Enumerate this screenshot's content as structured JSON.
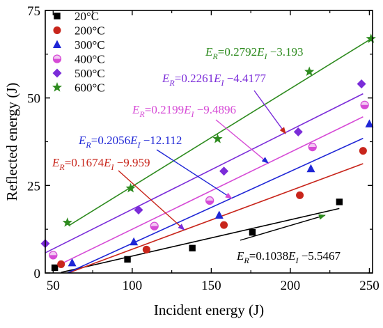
{
  "chart_data": {
    "type": "scatter",
    "title": "",
    "xlabel": "Incident energy (J)",
    "ylabel": "Reflected energy (J)",
    "xlim": [
      45,
      252
    ],
    "ylim": [
      0,
      75
    ],
    "xticks": [
      50,
      100,
      150,
      200,
      250
    ],
    "yticks": [
      0,
      25,
      50,
      75
    ],
    "x_minor_step": 25,
    "y_minor_step": 12.5,
    "grid": false,
    "legend_position": "top-left",
    "series": [
      {
        "name": "20°C",
        "color": "#000000",
        "marker": "square",
        "points": [
          [
            51,
            1.5
          ],
          [
            97,
            3.9
          ],
          [
            138,
            7.1
          ],
          [
            176,
            11.6
          ],
          [
            231,
            20.3
          ]
        ],
        "fit": {
          "equation": "E_R=0.1038E_I −5.5467",
          "slope": 0.1038,
          "intercept": -5.5467,
          "x_range": [
            55,
            231
          ]
        }
      },
      {
        "name": "200°C",
        "color": "#c8251b",
        "marker": "circle",
        "points": [
          [
            55,
            2.5
          ],
          [
            109,
            6.7
          ],
          [
            158,
            13.7
          ],
          [
            206,
            22.2
          ],
          [
            246,
            34.9
          ]
        ],
        "fit": {
          "equation": "E_R=0.1674E_I −9.959",
          "slope": 0.1674,
          "intercept": -9.959,
          "x_range": [
            60,
            246
          ]
        }
      },
      {
        "name": "300°C",
        "color": "#1f26d6",
        "marker": "triangle",
        "points": [
          [
            62,
            2.9
          ],
          [
            101,
            8.9
          ],
          [
            155,
            16.5
          ],
          [
            213,
            29.8
          ],
          [
            250,
            42.6
          ]
        ],
        "fit": {
          "equation": "E_R=0.2056E_I −12.112",
          "slope": 0.2056,
          "intercept": -12.112,
          "x_range": [
            59,
            246
          ]
        }
      },
      {
        "name": "400°C",
        "color": "#d64bd6",
        "marker": "half-circle",
        "points": [
          [
            50,
            5.1
          ],
          [
            114,
            13.4
          ],
          [
            149,
            20.7
          ],
          [
            214,
            36.0
          ],
          [
            247,
            48.0
          ]
        ],
        "fit": {
          "equation": "E_R=0.2199E_I −9.4896",
          "slope": 0.2199,
          "intercept": -9.4896,
          "x_range": [
            50,
            246
          ]
        }
      },
      {
        "name": "500°C",
        "color": "#7b2cd9",
        "marker": "diamond",
        "points": [
          [
            45,
            8.4
          ],
          [
            104,
            18.0
          ],
          [
            158,
            29.1
          ],
          [
            205,
            40.3
          ],
          [
            245,
            54.0
          ]
        ],
        "fit": {
          "equation": "E_R=0.2261E_I −4.4177",
          "slope": 0.2261,
          "intercept": -4.4177,
          "x_range": [
            45,
            246
          ]
        }
      },
      {
        "name": "600°C",
        "color": "#2e8b1f",
        "marker": "star",
        "points": [
          [
            59,
            14.4
          ],
          [
            99,
            24.2
          ],
          [
            154,
            38.3
          ],
          [
            212,
            57.5
          ],
          [
            251,
            66.9
          ]
        ],
        "fit": {
          "equation": "E_R=0.2792E_I −3.193",
          "slope": 0.2792,
          "intercept": -3.193,
          "x_range": [
            60,
            251
          ]
        }
      }
    ],
    "annotations": [
      {
        "series": "600°C",
        "parts": [
          "E",
          "R",
          "=0.2792",
          "E",
          "I",
          " −3.193"
        ],
        "target": [
          198,
          53.5
        ],
        "has_arrow": false
      },
      {
        "series": "500°C",
        "parts": [
          "E",
          "R",
          "=0.2261",
          "E",
          "I",
          " −4.4177"
        ],
        "target": [
          197,
          39.8
        ],
        "has_arrow": true
      },
      {
        "series": "400°C",
        "parts": [
          "E",
          "R",
          "=0.2199",
          "E",
          "I",
          " −9.4896"
        ],
        "target": [
          186,
          31.4
        ],
        "has_arrow": true
      },
      {
        "series": "300°C",
        "parts": [
          "E",
          "R",
          "=0.2056",
          "E",
          "I",
          " −12.112"
        ],
        "target": [
          163,
          21.3
        ],
        "has_arrow": true
      },
      {
        "series": "200°C",
        "parts": [
          "E",
          "R",
          "=0.1674",
          "E",
          "I",
          " −9.959"
        ],
        "target": [
          133,
          12.3
        ],
        "has_arrow": true
      },
      {
        "series": "20°C",
        "parts": [
          "E",
          "R",
          "=0.1038",
          "E",
          "I",
          " −5.5467"
        ],
        "target": [
          222,
          16.5
        ],
        "has_arrow": true
      }
    ]
  }
}
